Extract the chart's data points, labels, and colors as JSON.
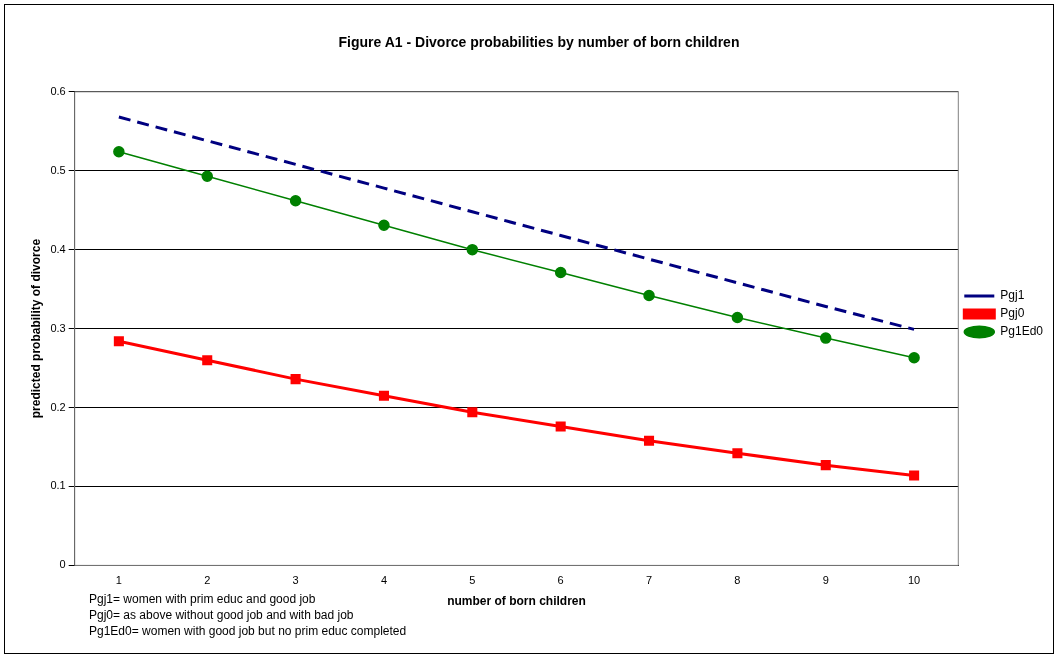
{
  "chart_data": {
    "type": "line",
    "title": "Figure A1 - Divorce probabilities by number of born children",
    "xlabel": "number of born children",
    "ylabel": "predicted probability of divorce",
    "categories": [
      "1",
      "2",
      "3",
      "4",
      "5",
      "6",
      "7",
      "8",
      "9",
      "10"
    ],
    "series": [
      {
        "name": "Pgj1",
        "color": "#000080",
        "marker": "none",
        "line_style": "dashed",
        "values": [
          0.568,
          0.538,
          0.508,
          0.478,
          0.448,
          0.418,
          0.388,
          0.358,
          0.328,
          0.299
        ]
      },
      {
        "name": "Pgj0",
        "color": "#ff0000",
        "marker": "square",
        "line_style": "solid",
        "values": [
          0.284,
          0.26,
          0.236,
          0.215,
          0.194,
          0.176,
          0.158,
          0.142,
          0.127,
          0.114
        ]
      },
      {
        "name": "Pg1Ed0",
        "color": "#008000",
        "marker": "circle",
        "line_style": "solid",
        "values": [
          0.524,
          0.493,
          0.462,
          0.431,
          0.4,
          0.371,
          0.342,
          0.314,
          0.288,
          0.263
        ]
      }
    ],
    "ylim": [
      0,
      0.6
    ],
    "yticks": [
      0,
      0.1,
      0.2,
      0.3,
      0.4,
      0.5,
      0.6
    ],
    "grid": "y",
    "legend": "right",
    "annotations": [
      "Pgj1= women with prim educ and good job",
      "Pgj0= as above without good job and with bad job",
      "Pg1Ed0= women with good job but no prim educ completed"
    ]
  }
}
